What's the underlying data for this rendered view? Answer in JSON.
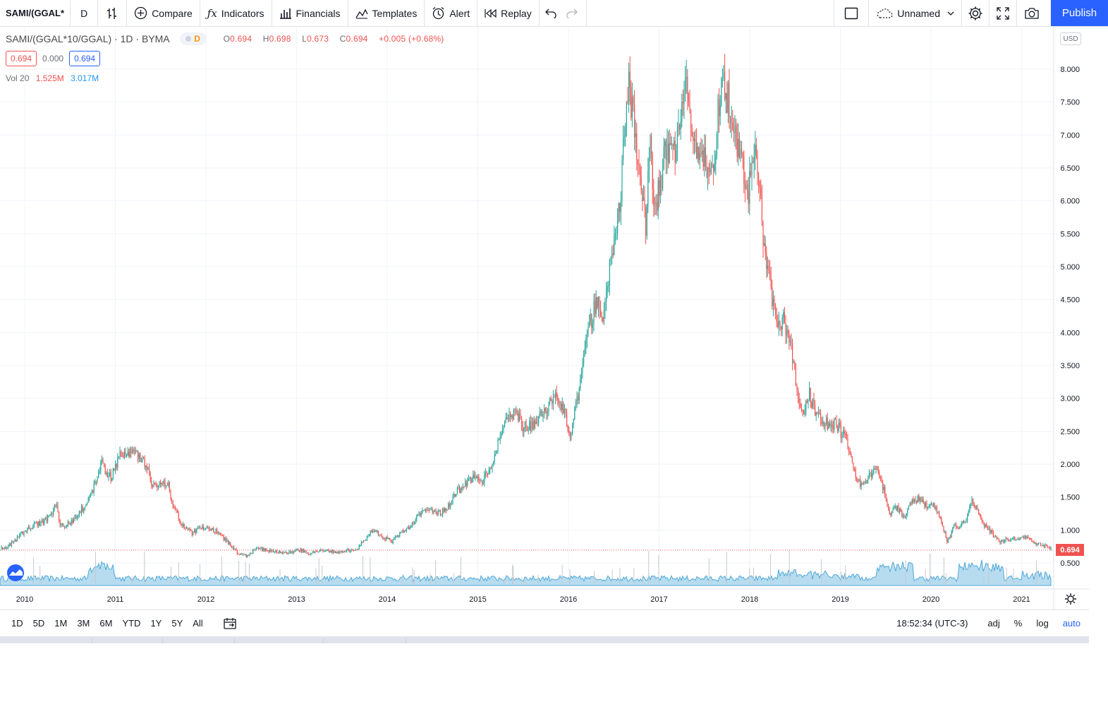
{
  "toolbar": {
    "symbol": "SAMI/(GGAL*",
    "interval": "D",
    "compare_label": "Compare",
    "indicators_label": "Indicators",
    "financials_label": "Financials",
    "templates_label": "Templates",
    "alert_label": "Alert",
    "replay_label": "Replay",
    "layout_name": "Unnamed",
    "publish_label": "Publish"
  },
  "legend": {
    "title": "SAMI/(GGAL*10/GGAL) · 1D · BYMA",
    "badge": "D",
    "open_label": "O",
    "open": "0.694",
    "high_label": "H",
    "high": "0.698",
    "low_label": "L",
    "low": "0.673",
    "close_label": "C",
    "close": "0.694",
    "change": "+0.005 (+0.68%)",
    "bid": "0.694",
    "spread": "0.000",
    "ask": "0.694"
  },
  "volume": {
    "label": "Vol 20",
    "value1": "1.525M",
    "value2": "3.017M"
  },
  "axis": {
    "currency": "USD",
    "last_price": "0.694"
  },
  "chart_data": {
    "type": "candlestick",
    "y_ticks": [
      "8.000",
      "7.500",
      "7.000",
      "6.500",
      "6.000",
      "5.500",
      "5.000",
      "4.500",
      "4.000",
      "3.500",
      "3.000",
      "2.500",
      "2.000",
      "1.500",
      "1.000",
      "0.500"
    ],
    "y_tick_values": [
      8,
      7.5,
      7,
      6.5,
      6,
      5.5,
      5,
      4.5,
      4,
      3.5,
      3,
      2.5,
      2,
      1.5,
      1,
      0.5
    ],
    "ylim": [
      0.15,
      8.6
    ],
    "x_ticks": [
      "2010",
      "2011",
      "2012",
      "2013",
      "2014",
      "2015",
      "2016",
      "2017",
      "2018",
      "2019",
      "2020",
      "2021"
    ],
    "xlim": [
      2009.78,
      2021.55
    ],
    "last_price": 0.694,
    "colors": {
      "up": "#26a69a",
      "down": "#ef5350",
      "volume": "#4fa8d8"
    },
    "series": [
      {
        "name": "Price",
        "points": [
          [
            2009.8,
            0.72
          ],
          [
            2009.9,
            0.85
          ],
          [
            2010.0,
            0.98
          ],
          [
            2010.1,
            1.08
          ],
          [
            2010.2,
            1.12
          ],
          [
            2010.3,
            1.25
          ],
          [
            2010.35,
            1.42
          ],
          [
            2010.38,
            1.1
          ],
          [
            2010.45,
            1.05
          ],
          [
            2010.55,
            1.18
          ],
          [
            2010.65,
            1.35
          ],
          [
            2010.72,
            1.5
          ],
          [
            2010.8,
            1.8
          ],
          [
            2010.85,
            2.05
          ],
          [
            2010.9,
            1.85
          ],
          [
            2010.95,
            1.8
          ],
          [
            2011.0,
            1.95
          ],
          [
            2011.05,
            2.2
          ],
          [
            2011.12,
            2.15
          ],
          [
            2011.2,
            2.2
          ],
          [
            2011.28,
            2.1
          ],
          [
            2011.35,
            1.95
          ],
          [
            2011.4,
            1.7
          ],
          [
            2011.5,
            1.68
          ],
          [
            2011.58,
            1.7
          ],
          [
            2011.62,
            1.45
          ],
          [
            2011.68,
            1.25
          ],
          [
            2011.75,
            1.05
          ],
          [
            2011.85,
            0.95
          ],
          [
            2011.95,
            1.05
          ],
          [
            2012.05,
            1.02
          ],
          [
            2012.15,
            0.95
          ],
          [
            2012.25,
            0.8
          ],
          [
            2012.35,
            0.65
          ],
          [
            2012.45,
            0.6
          ],
          [
            2012.55,
            0.72
          ],
          [
            2012.65,
            0.7
          ],
          [
            2012.75,
            0.68
          ],
          [
            2012.85,
            0.65
          ],
          [
            2012.95,
            0.66
          ],
          [
            2013.05,
            0.7
          ],
          [
            2013.15,
            0.64
          ],
          [
            2013.25,
            0.7
          ],
          [
            2013.35,
            0.68
          ],
          [
            2013.45,
            0.65
          ],
          [
            2013.55,
            0.7
          ],
          [
            2013.65,
            0.68
          ],
          [
            2013.75,
            0.85
          ],
          [
            2013.85,
            1.0
          ],
          [
            2013.95,
            0.9
          ],
          [
            2014.05,
            0.82
          ],
          [
            2014.15,
            0.95
          ],
          [
            2014.25,
            1.05
          ],
          [
            2014.35,
            1.25
          ],
          [
            2014.45,
            1.3
          ],
          [
            2014.55,
            1.25
          ],
          [
            2014.65,
            1.3
          ],
          [
            2014.75,
            1.55
          ],
          [
            2014.85,
            1.7
          ],
          [
            2014.95,
            1.8
          ],
          [
            2015.05,
            1.75
          ],
          [
            2015.12,
            1.9
          ],
          [
            2015.2,
            2.15
          ],
          [
            2015.25,
            2.5
          ],
          [
            2015.3,
            2.65
          ],
          [
            2015.38,
            2.7
          ],
          [
            2015.42,
            2.85
          ],
          [
            2015.48,
            2.6
          ],
          [
            2015.55,
            2.55
          ],
          [
            2015.62,
            2.6
          ],
          [
            2015.7,
            2.75
          ],
          [
            2015.78,
            2.9
          ],
          [
            2015.85,
            3.1
          ],
          [
            2015.9,
            2.95
          ],
          [
            2015.95,
            2.85
          ],
          [
            2016.02,
            2.4
          ],
          [
            2016.08,
            2.85
          ],
          [
            2016.15,
            3.4
          ],
          [
            2016.22,
            4.0
          ],
          [
            2016.3,
            4.45
          ],
          [
            2016.38,
            4.3
          ],
          [
            2016.45,
            4.9
          ],
          [
            2016.52,
            5.5
          ],
          [
            2016.58,
            6.2
          ],
          [
            2016.62,
            7.2
          ],
          [
            2016.66,
            7.8
          ],
          [
            2016.7,
            7.4
          ],
          [
            2016.75,
            6.9
          ],
          [
            2016.8,
            6.2
          ],
          [
            2016.85,
            5.6
          ],
          [
            2016.9,
            6.8
          ],
          [
            2016.95,
            5.9
          ],
          [
            2017.0,
            6.2
          ],
          [
            2017.08,
            6.8
          ],
          [
            2017.15,
            6.6
          ],
          [
            2017.22,
            7.0
          ],
          [
            2017.3,
            7.7
          ],
          [
            2017.38,
            6.7
          ],
          [
            2017.45,
            6.9
          ],
          [
            2017.52,
            6.6
          ],
          [
            2017.6,
            6.5
          ],
          [
            2017.65,
            7.4
          ],
          [
            2017.72,
            7.8
          ],
          [
            2017.78,
            7.4
          ],
          [
            2017.85,
            6.9
          ],
          [
            2017.92,
            6.6
          ],
          [
            2017.98,
            6.1
          ],
          [
            2018.05,
            6.8
          ],
          [
            2018.1,
            6.4
          ],
          [
            2018.15,
            5.4
          ],
          [
            2018.22,
            4.8
          ],
          [
            2018.3,
            4.0
          ],
          [
            2018.38,
            4.2
          ],
          [
            2018.45,
            3.8
          ],
          [
            2018.52,
            3.1
          ],
          [
            2018.58,
            2.7
          ],
          [
            2018.65,
            3.1
          ],
          [
            2018.72,
            2.8
          ],
          [
            2018.8,
            2.65
          ],
          [
            2018.88,
            2.6
          ],
          [
            2018.95,
            2.6
          ],
          [
            2019.05,
            2.4
          ],
          [
            2019.12,
            2.1
          ],
          [
            2019.18,
            1.8
          ],
          [
            2019.25,
            1.65
          ],
          [
            2019.32,
            1.8
          ],
          [
            2019.4,
            1.95
          ],
          [
            2019.45,
            1.75
          ],
          [
            2019.55,
            1.25
          ],
          [
            2019.62,
            1.35
          ],
          [
            2019.7,
            1.2
          ],
          [
            2019.78,
            1.4
          ],
          [
            2019.88,
            1.5
          ],
          [
            2019.95,
            1.35
          ],
          [
            2020.02,
            1.4
          ],
          [
            2020.1,
            1.2
          ],
          [
            2020.18,
            0.8
          ],
          [
            2020.25,
            1.05
          ],
          [
            2020.32,
            1.05
          ],
          [
            2020.4,
            1.2
          ],
          [
            2020.45,
            1.45
          ],
          [
            2020.52,
            1.25
          ],
          [
            2020.6,
            1.05
          ],
          [
            2020.68,
            0.95
          ],
          [
            2020.75,
            0.82
          ],
          [
            2020.82,
            0.85
          ],
          [
            2020.9,
            0.88
          ],
          [
            2020.98,
            0.85
          ],
          [
            2021.05,
            0.9
          ],
          [
            2021.12,
            0.8
          ],
          [
            2021.2,
            0.78
          ],
          [
            2021.28,
            0.75
          ],
          [
            2021.35,
            0.72
          ],
          [
            2021.42,
            0.73
          ],
          [
            2021.5,
            0.69
          ]
        ]
      }
    ]
  },
  "bottom": {
    "ranges": [
      "1D",
      "5D",
      "1M",
      "3M",
      "6M",
      "YTD",
      "1Y",
      "5Y",
      "All"
    ],
    "time": "18:52:34 (UTC-3)",
    "adj": "adj",
    "percent": "%",
    "log": "log",
    "auto": "auto"
  }
}
